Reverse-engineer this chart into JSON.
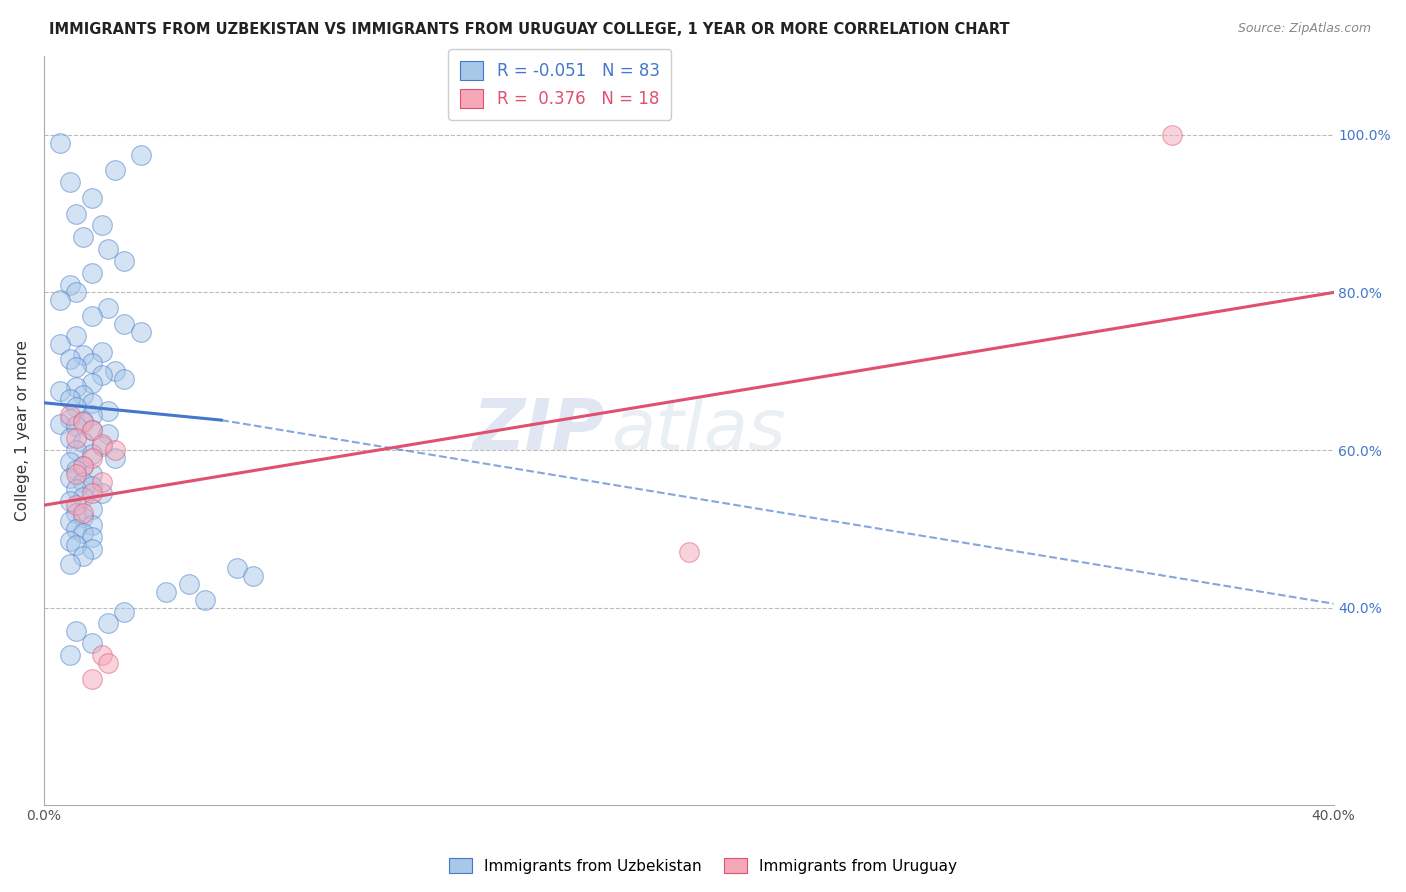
{
  "title": "IMMIGRANTS FROM UZBEKISTAN VS IMMIGRANTS FROM URUGUAY COLLEGE, 1 YEAR OR MORE CORRELATION CHART",
  "source": "Source: ZipAtlas.com",
  "ylabel": "College, 1 year or more",
  "legend_label_blue": "Immigrants from Uzbekistan",
  "legend_label_pink": "Immigrants from Uruguay",
  "R_blue": -0.051,
  "N_blue": 83,
  "R_pink": 0.376,
  "N_pink": 18,
  "xlim": [
    0.0,
    0.4
  ],
  "ylim": [
    0.15,
    1.1
  ],
  "y_ticks_right": [
    0.4,
    0.6,
    0.8,
    1.0
  ],
  "y_ticks_right_labels": [
    "40.0%",
    "60.0%",
    "80.0%",
    "100.0%"
  ],
  "x_ticks": [
    0.0,
    0.05,
    0.1,
    0.15,
    0.2,
    0.25,
    0.3,
    0.35,
    0.4
  ],
  "x_tick_labels_show": [
    "0.0%",
    "",
    "",
    "",
    "",
    "",
    "",
    "",
    "40.0%"
  ],
  "color_blue": "#A8C8E8",
  "color_pink": "#F4A8B8",
  "line_color_blue": "#4477CC",
  "line_color_pink": "#E05070",
  "watermark_zip": "ZIP",
  "watermark_atlas": "atlas",
  "blue_solid_line_x": [
    0.0,
    0.055
  ],
  "blue_solid_line_y": [
    0.66,
    0.638
  ],
  "blue_dash_line_x": [
    0.055,
    0.4
  ],
  "blue_dash_line_y": [
    0.638,
    0.405
  ],
  "pink_solid_line_x": [
    0.0,
    0.4
  ],
  "pink_solid_line_y": [
    0.53,
    0.8
  ],
  "blue_scatter_x": [
    0.005,
    0.03,
    0.022,
    0.008,
    0.015,
    0.01,
    0.018,
    0.012,
    0.02,
    0.025,
    0.015,
    0.008,
    0.01,
    0.005,
    0.02,
    0.015,
    0.025,
    0.03,
    0.01,
    0.005,
    0.018,
    0.012,
    0.008,
    0.015,
    0.01,
    0.022,
    0.018,
    0.025,
    0.015,
    0.01,
    0.005,
    0.012,
    0.008,
    0.015,
    0.01,
    0.02,
    0.015,
    0.008,
    0.012,
    0.005,
    0.01,
    0.015,
    0.02,
    0.008,
    0.012,
    0.018,
    0.01,
    0.015,
    0.022,
    0.008,
    0.012,
    0.01,
    0.015,
    0.008,
    0.012,
    0.015,
    0.01,
    0.018,
    0.012,
    0.008,
    0.015,
    0.01,
    0.012,
    0.008,
    0.015,
    0.01,
    0.012,
    0.015,
    0.008,
    0.01,
    0.015,
    0.012,
    0.008,
    0.06,
    0.065,
    0.045,
    0.038,
    0.05,
    0.025,
    0.02,
    0.01,
    0.015,
    0.008
  ],
  "blue_scatter_y": [
    0.99,
    0.975,
    0.955,
    0.94,
    0.92,
    0.9,
    0.885,
    0.87,
    0.855,
    0.84,
    0.825,
    0.81,
    0.8,
    0.79,
    0.78,
    0.77,
    0.76,
    0.75,
    0.745,
    0.735,
    0.725,
    0.72,
    0.715,
    0.71,
    0.705,
    0.7,
    0.695,
    0.69,
    0.685,
    0.68,
    0.675,
    0.67,
    0.665,
    0.66,
    0.655,
    0.65,
    0.645,
    0.64,
    0.637,
    0.633,
    0.63,
    0.625,
    0.62,
    0.615,
    0.61,
    0.605,
    0.6,
    0.595,
    0.59,
    0.585,
    0.58,
    0.575,
    0.57,
    0.565,
    0.56,
    0.555,
    0.55,
    0.545,
    0.54,
    0.535,
    0.525,
    0.52,
    0.515,
    0.51,
    0.505,
    0.5,
    0.495,
    0.49,
    0.485,
    0.48,
    0.475,
    0.465,
    0.455,
    0.45,
    0.44,
    0.43,
    0.42,
    0.41,
    0.395,
    0.38,
    0.37,
    0.355,
    0.34
  ],
  "pink_scatter_x": [
    0.35,
    0.008,
    0.012,
    0.015,
    0.01,
    0.018,
    0.022,
    0.015,
    0.012,
    0.01,
    0.018,
    0.015,
    0.01,
    0.012,
    0.2,
    0.018,
    0.02,
    0.015
  ],
  "pink_scatter_y": [
    1.0,
    0.645,
    0.635,
    0.625,
    0.615,
    0.608,
    0.6,
    0.59,
    0.58,
    0.57,
    0.56,
    0.545,
    0.53,
    0.52,
    0.47,
    0.34,
    0.33,
    0.31
  ]
}
